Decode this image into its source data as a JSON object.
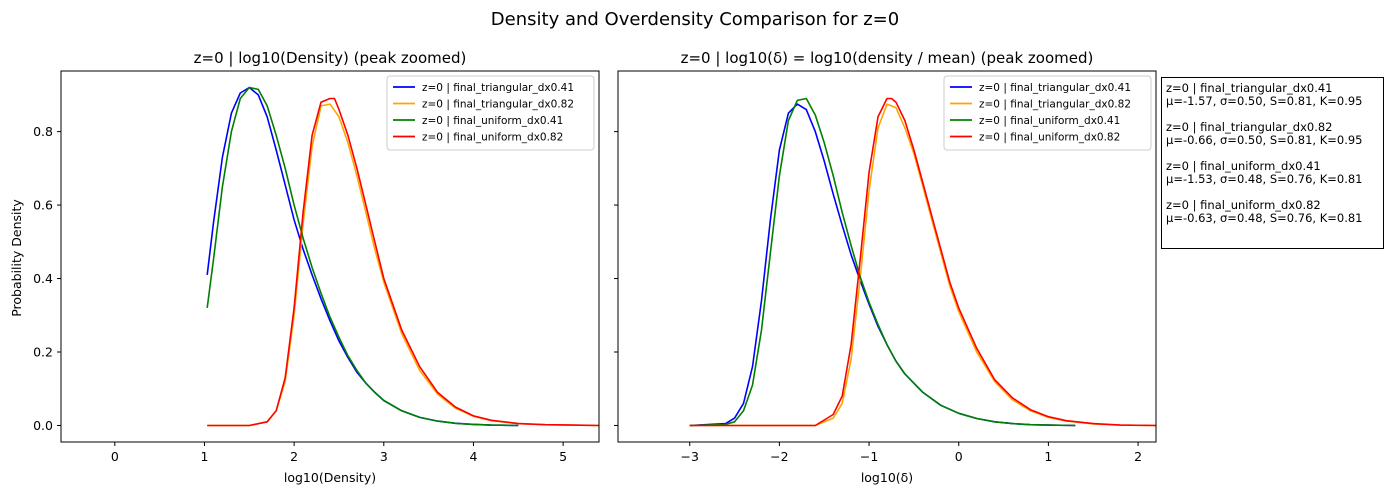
{
  "figure": {
    "suptitle": "Density and Overdensity Comparison for z=0"
  },
  "colors": {
    "final_triangular_dx0.41": "#0000ff",
    "final_triangular_dx0.82": "#ffa500",
    "final_uniform_dx0.41": "#008000",
    "final_uniform_dx0.82": "#ff0000"
  },
  "chart_data": [
    {
      "type": "line",
      "title": "z=0 | log10(Density) (peak zoomed)",
      "xlabel": "log10(Density)",
      "ylabel": "Probability Density",
      "xlim": [
        -0.6,
        5.4
      ],
      "ylim": [
        -0.045,
        0.965
      ],
      "xticks": [
        "0",
        "1",
        "2",
        "3",
        "4",
        "5"
      ],
      "yticks": [
        "0.0",
        "0.2",
        "0.4",
        "0.6",
        "0.8"
      ],
      "grid": false,
      "legend_position": "top-right",
      "series": [
        {
          "name": "z=0 | final_triangular_dx0.41",
          "x": [
            1.03,
            1.1,
            1.2,
            1.3,
            1.4,
            1.5,
            1.6,
            1.7,
            1.8,
            1.9,
            2.0,
            2.1,
            2.2,
            2.3,
            2.4,
            2.5,
            2.6,
            2.7,
            2.8,
            2.9,
            3.0,
            3.2,
            3.4,
            3.6,
            3.8,
            4.0,
            4.2,
            4.5
          ],
          "y": [
            0.41,
            0.55,
            0.73,
            0.85,
            0.905,
            0.92,
            0.9,
            0.84,
            0.75,
            0.655,
            0.56,
            0.48,
            0.41,
            0.345,
            0.285,
            0.23,
            0.185,
            0.145,
            0.115,
            0.09,
            0.068,
            0.04,
            0.022,
            0.012,
            0.006,
            0.003,
            0.001,
            0.0
          ]
        },
        {
          "name": "z=0 | final_triangular_dx0.82",
          "x": [
            1.03,
            1.5,
            1.7,
            1.8,
            1.9,
            2.0,
            2.1,
            2.2,
            2.3,
            2.4,
            2.5,
            2.6,
            2.7,
            2.8,
            2.9,
            3.0,
            3.2,
            3.4,
            3.6,
            3.8,
            4.0,
            4.2,
            4.5,
            4.8,
            5.1,
            5.4
          ],
          "y": [
            0.0,
            0.0,
            0.01,
            0.04,
            0.12,
            0.3,
            0.55,
            0.76,
            0.87,
            0.875,
            0.84,
            0.77,
            0.68,
            0.58,
            0.48,
            0.39,
            0.25,
            0.15,
            0.085,
            0.047,
            0.025,
            0.013,
            0.005,
            0.002,
            0.001,
            0.0
          ]
        },
        {
          "name": "z=0 | final_uniform_dx0.41",
          "x": [
            1.03,
            1.1,
            1.2,
            1.3,
            1.4,
            1.5,
            1.6,
            1.7,
            1.8,
            1.9,
            2.0,
            2.1,
            2.2,
            2.3,
            2.4,
            2.5,
            2.6,
            2.7,
            2.8,
            2.9,
            3.0,
            3.2,
            3.4,
            3.6,
            3.8,
            4.0,
            4.2,
            4.5
          ],
          "y": [
            0.32,
            0.45,
            0.65,
            0.8,
            0.89,
            0.92,
            0.915,
            0.87,
            0.79,
            0.7,
            0.6,
            0.51,
            0.43,
            0.36,
            0.295,
            0.24,
            0.19,
            0.15,
            0.115,
            0.09,
            0.068,
            0.04,
            0.022,
            0.012,
            0.006,
            0.003,
            0.001,
            0.0
          ]
        },
        {
          "name": "z=0 | final_uniform_dx0.82",
          "x": [
            1.03,
            1.5,
            1.7,
            1.8,
            1.9,
            2.0,
            2.1,
            2.2,
            2.3,
            2.4,
            2.45,
            2.5,
            2.6,
            2.7,
            2.8,
            2.9,
            3.0,
            3.2,
            3.4,
            3.6,
            3.8,
            4.0,
            4.2,
            4.5,
            4.8,
            5.1,
            5.4
          ],
          "y": [
            0.0,
            0.0,
            0.01,
            0.04,
            0.13,
            0.32,
            0.58,
            0.79,
            0.88,
            0.89,
            0.89,
            0.86,
            0.79,
            0.7,
            0.6,
            0.5,
            0.4,
            0.26,
            0.16,
            0.09,
            0.05,
            0.026,
            0.014,
            0.005,
            0.002,
            0.001,
            0.0
          ]
        }
      ]
    },
    {
      "type": "line",
      "title": "z=0 | log10(δ) = log10(density / mean) (peak zoomed)",
      "xlabel": "log10(δ)",
      "ylabel": "",
      "xlim": [
        -3.8,
        2.2
      ],
      "ylim": [
        -0.045,
        0.965
      ],
      "xticks": [
        "−3",
        "−2",
        "−1",
        "0",
        "1",
        "2"
      ],
      "yticks_labels_shown": false,
      "grid": false,
      "legend_position": "top-right",
      "series": [
        {
          "name": "z=0 | final_triangular_dx0.41",
          "x": [
            -3.0,
            -2.6,
            -2.5,
            -2.4,
            -2.3,
            -2.2,
            -2.1,
            -2.0,
            -1.9,
            -1.8,
            -1.7,
            -1.6,
            -1.5,
            -1.4,
            -1.3,
            -1.2,
            -1.1,
            -1.0,
            -0.9,
            -0.8,
            -0.7,
            -0.6,
            -0.4,
            -0.2,
            0.0,
            0.2,
            0.4,
            0.6,
            0.8,
            1.0,
            1.3
          ],
          "y": [
            0.0,
            0.005,
            0.02,
            0.06,
            0.16,
            0.34,
            0.56,
            0.75,
            0.85,
            0.875,
            0.86,
            0.8,
            0.72,
            0.63,
            0.545,
            0.465,
            0.395,
            0.33,
            0.27,
            0.22,
            0.175,
            0.14,
            0.09,
            0.055,
            0.033,
            0.019,
            0.01,
            0.005,
            0.002,
            0.001,
            0.0
          ]
        },
        {
          "name": "z=0 | final_triangular_dx0.82",
          "x": [
            -3.0,
            -1.6,
            -1.4,
            -1.3,
            -1.2,
            -1.1,
            -1.0,
            -0.9,
            -0.8,
            -0.7,
            -0.6,
            -0.5,
            -0.4,
            -0.3,
            -0.2,
            -0.1,
            0.0,
            0.2,
            0.4,
            0.6,
            0.8,
            1.0,
            1.2,
            1.5,
            1.8,
            2.2
          ],
          "y": [
            0.0,
            0.0,
            0.02,
            0.06,
            0.18,
            0.4,
            0.64,
            0.81,
            0.875,
            0.865,
            0.81,
            0.74,
            0.65,
            0.56,
            0.47,
            0.38,
            0.31,
            0.2,
            0.12,
            0.07,
            0.04,
            0.022,
            0.012,
            0.004,
            0.001,
            0.0
          ]
        },
        {
          "name": "z=0 | final_uniform_dx0.41",
          "x": [
            -3.0,
            -2.6,
            -2.5,
            -2.4,
            -2.3,
            -2.2,
            -2.1,
            -2.0,
            -1.9,
            -1.8,
            -1.7,
            -1.6,
            -1.5,
            -1.4,
            -1.3,
            -1.2,
            -1.1,
            -1.0,
            -0.9,
            -0.8,
            -0.7,
            -0.6,
            -0.4,
            -0.2,
            0.0,
            0.2,
            0.4,
            0.6,
            0.8,
            1.0,
            1.3
          ],
          "y": [
            0.0,
            0.003,
            0.01,
            0.04,
            0.11,
            0.26,
            0.47,
            0.68,
            0.83,
            0.885,
            0.89,
            0.845,
            0.77,
            0.68,
            0.58,
            0.49,
            0.405,
            0.335,
            0.275,
            0.22,
            0.175,
            0.14,
            0.09,
            0.055,
            0.033,
            0.019,
            0.01,
            0.005,
            0.002,
            0.001,
            0.0
          ]
        },
        {
          "name": "z=0 | final_uniform_dx0.82",
          "x": [
            -3.0,
            -1.6,
            -1.4,
            -1.3,
            -1.2,
            -1.1,
            -1.0,
            -0.9,
            -0.8,
            -0.75,
            -0.7,
            -0.6,
            -0.5,
            -0.4,
            -0.3,
            -0.2,
            -0.1,
            0.0,
            0.2,
            0.4,
            0.6,
            0.8,
            1.0,
            1.2,
            1.5,
            1.8,
            2.2
          ],
          "y": [
            0.0,
            0.0,
            0.03,
            0.08,
            0.22,
            0.45,
            0.69,
            0.84,
            0.89,
            0.89,
            0.88,
            0.83,
            0.75,
            0.66,
            0.57,
            0.48,
            0.39,
            0.32,
            0.21,
            0.125,
            0.075,
            0.043,
            0.024,
            0.013,
            0.005,
            0.001,
            0.0
          ]
        }
      ]
    }
  ],
  "stats_box": [
    {
      "name": "z=0 | final_triangular_dx0.41",
      "stats": "μ=-1.57, σ=0.50, S=0.81, K=0.95"
    },
    {
      "name": "z=0 | final_triangular_dx0.82",
      "stats": "μ=-0.66, σ=0.50, S=0.81, K=0.95"
    },
    {
      "name": "z=0 | final_uniform_dx0.41",
      "stats": "μ=-1.53, σ=0.48, S=0.76, K=0.81"
    },
    {
      "name": "z=0 | final_uniform_dx0.82",
      "stats": "μ=-0.63, σ=0.48, S=0.76, K=0.81"
    }
  ]
}
